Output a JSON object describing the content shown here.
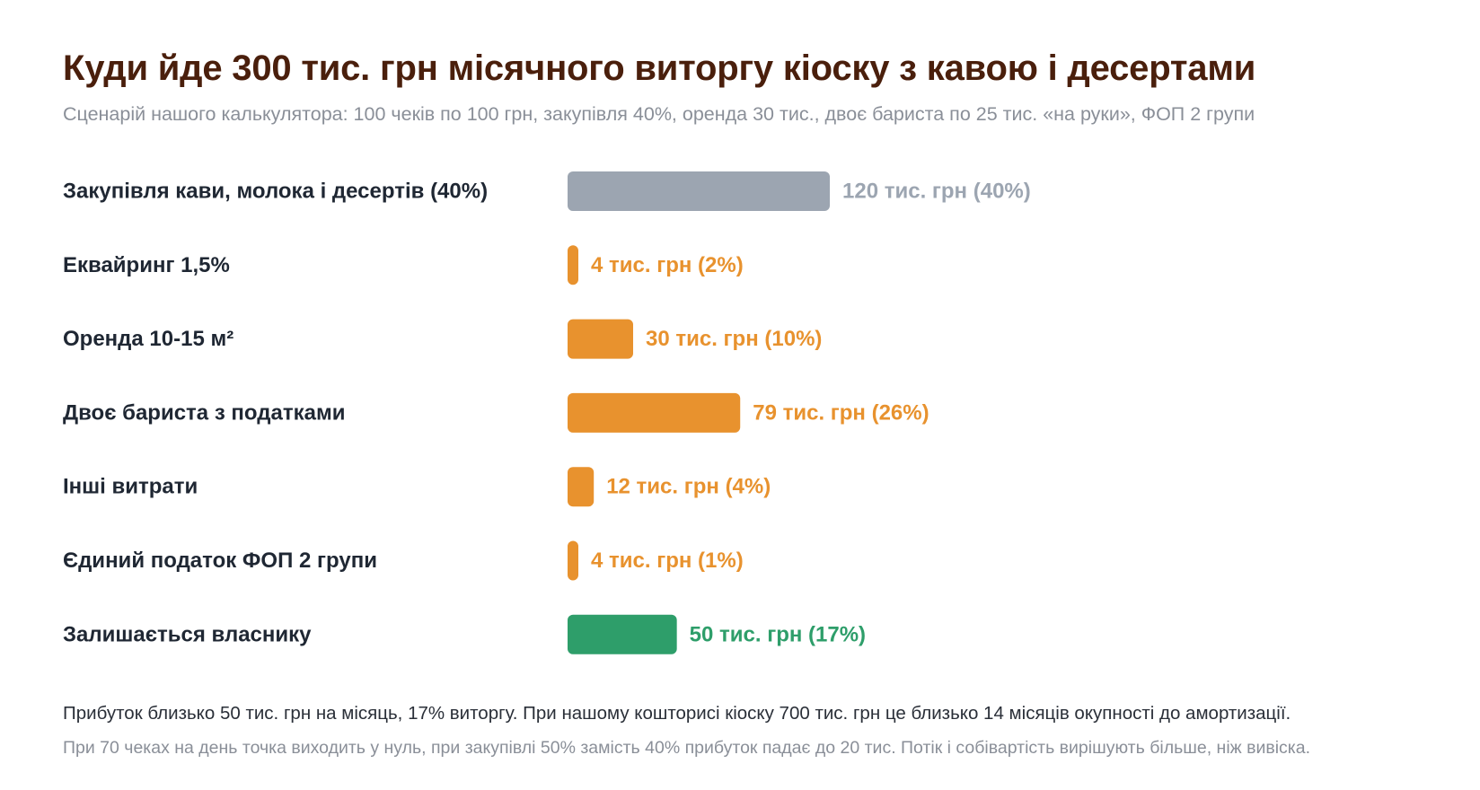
{
  "header": {
    "title": "Куди йде 300 тис. грн місячного виторгу кіоску з кавою і десертами",
    "subtitle": "Сценарій нашого калькулятора: 100 чеків по 100 грн, закупівля 40%, оренда 30 тис., двоє бариста по 25 тис. «на руки», ФОП 2 групи"
  },
  "colors": {
    "title": "#4a1f0c",
    "category_label": "#1f2733",
    "purchase": "#9ca5b1",
    "expense": "#e8922e",
    "profit": "#2e9e6a",
    "muted_text": "#8a8f98"
  },
  "chart_data": {
    "type": "bar",
    "orientation": "horizontal",
    "total": 300,
    "unit": "тис. грн",
    "categories": [
      "Закупівля кави, молока і десертів (40%)",
      "Еквайринг 1,5%",
      "Оренда 10-15 м²",
      "Двоє бариста з податками",
      "Інші витрати",
      "Єдиний податок ФОП 2 групи",
      "Залишається власнику"
    ],
    "values": [
      120,
      4,
      30,
      79,
      12,
      4,
      50
    ],
    "percents": [
      40,
      2,
      10,
      26,
      4,
      1,
      17
    ],
    "labels": [
      "120 тис. грн (40%)",
      "4 тис. грн (2%)",
      "30 тис. грн (10%)",
      "79 тис. грн (26%)",
      "12 тис. грн (4%)",
      "4 тис. грн (1%)",
      "50 тис. грн (17%)"
    ],
    "bar_colors": [
      "#9ca5b1",
      "#e8922e",
      "#e8922e",
      "#e8922e",
      "#e8922e",
      "#e8922e",
      "#2e9e6a"
    ],
    "grid": false,
    "axes": false,
    "legend": "none"
  },
  "footer": {
    "note1": "Прибуток близько 50 тис. грн на місяць, 17% виторгу. При нашому кошторисі кіоску 700 тис. грн це близько 14 місяців окупності до амортизації.",
    "note2": "При 70 чеках на день точка виходить у нуль, при закупівлі 50% замість 40% прибуток падає до 20 тис. Потік і собівартість вирішують більше, ніж вивіска."
  }
}
